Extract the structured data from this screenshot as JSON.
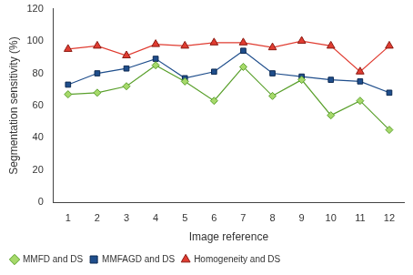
{
  "chart_data": {
    "type": "line",
    "x_label": "Image reference",
    "y_label": "Segmentation sensitivity (%)",
    "categories": [
      "1",
      "2",
      "3",
      "4",
      "5",
      "6",
      "7",
      "8",
      "9",
      "10",
      "11",
      "12"
    ],
    "series": [
      {
        "name": "MMFD and DS",
        "color": "#5aa02c",
        "marker": "diamond",
        "values": [
          67,
          68,
          72,
          85,
          75,
          63,
          84,
          66,
          76,
          54,
          63,
          45
        ]
      },
      {
        "name": "MMFAGD and DS",
        "color": "#1f4e8c",
        "marker": "square",
        "values": [
          73,
          80,
          83,
          89,
          77,
          81,
          94,
          80,
          78,
          76,
          75,
          68
        ]
      },
      {
        "name": "Homogeneity and DS",
        "color": "#e03c31",
        "marker": "triangle",
        "values": [
          95,
          97,
          91,
          98,
          97,
          99,
          99,
          96,
          100,
          97,
          81,
          97
        ]
      }
    ],
    "ylim": [
      0,
      120
    ],
    "yticks": [
      0,
      20,
      40,
      60,
      80,
      100,
      120
    ],
    "grid": false,
    "legend": "bottom"
  }
}
